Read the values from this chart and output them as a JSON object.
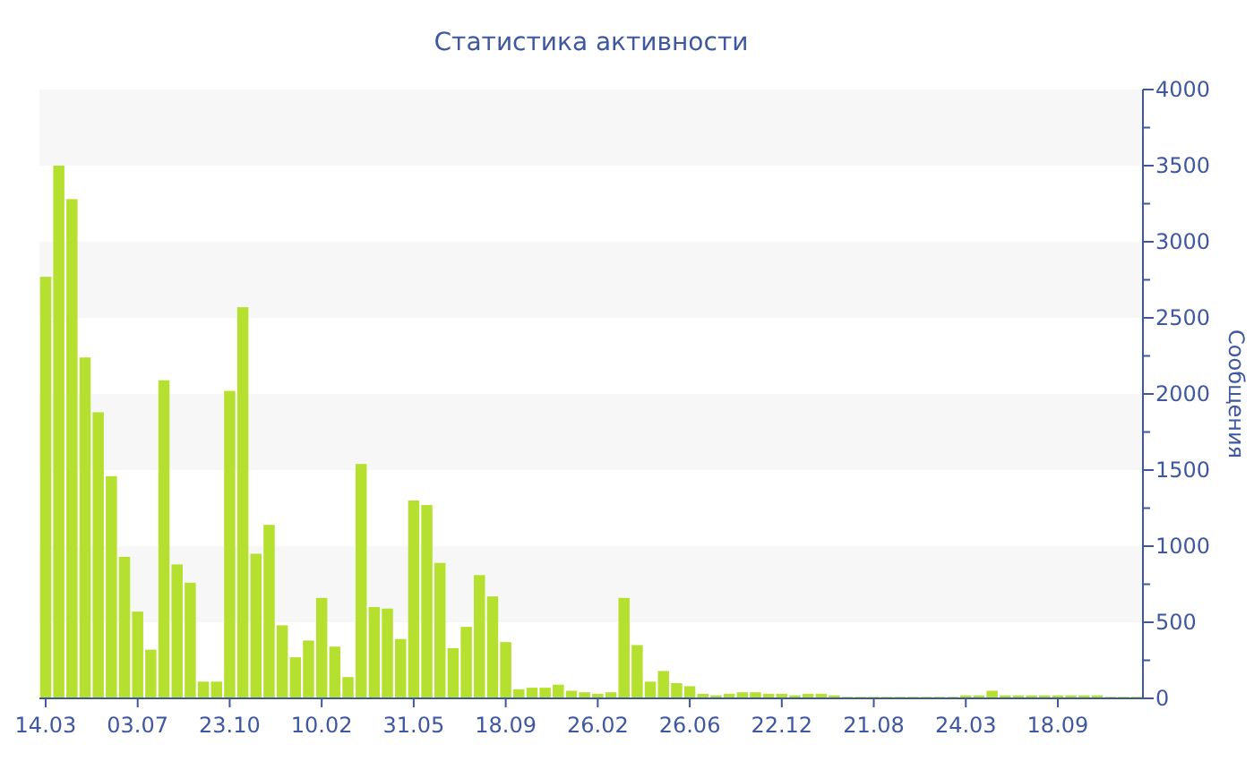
{
  "chart_data": {
    "type": "bar",
    "title": "Статистика активности",
    "ylabel": "Сообщения",
    "categories": [
      "14.03",
      null,
      null,
      null,
      null,
      null,
      null,
      "03.07",
      null,
      null,
      null,
      null,
      null,
      null,
      "23.10",
      null,
      null,
      null,
      null,
      null,
      null,
      "10.02",
      null,
      null,
      null,
      null,
      null,
      null,
      "31.05",
      null,
      null,
      null,
      null,
      null,
      null,
      "18.09",
      null,
      null,
      null,
      null,
      null,
      null,
      "26.02",
      null,
      null,
      null,
      null,
      null,
      null,
      "26.06",
      null,
      null,
      null,
      null,
      null,
      null,
      "22.12",
      null,
      null,
      null,
      null,
      null,
      null,
      "21.08",
      null,
      null,
      null,
      null,
      null,
      null,
      "24.03",
      null,
      null,
      null,
      null,
      null,
      null,
      "18.09",
      null,
      null,
      null,
      null,
      null,
      null
    ],
    "values": [
      2770,
      3500,
      3280,
      2240,
      1880,
      1460,
      930,
      570,
      320,
      2090,
      880,
      760,
      110,
      110,
      2020,
      2570,
      950,
      1140,
      480,
      270,
      380,
      660,
      340,
      140,
      1540,
      600,
      590,
      390,
      1300,
      1270,
      890,
      330,
      470,
      810,
      670,
      370,
      60,
      70,
      70,
      90,
      50,
      40,
      30,
      40,
      660,
      350,
      110,
      180,
      100,
      80,
      30,
      20,
      30,
      40,
      40,
      30,
      30,
      20,
      30,
      30,
      20,
      10,
      10,
      10,
      10,
      10,
      10,
      10,
      10,
      10,
      20,
      20,
      50,
      20,
      20,
      20,
      20,
      20,
      20,
      20,
      20,
      10,
      10,
      10
    ],
    "color": "#b5e02f",
    "ylim": [
      0,
      4000
    ],
    "yticks": [
      0,
      {
        "value": 250,
        "label": null
      },
      500,
      {
        "value": 750,
        "label": null
      },
      1000,
      {
        "value": 1250,
        "label": null
      },
      1500,
      {
        "value": 1750,
        "label": null
      },
      2000,
      {
        "value": 2250,
        "label": null
      },
      2500,
      {
        "value": 2750,
        "label": null
      },
      3000,
      {
        "value": 3250,
        "label": null
      },
      3500,
      {
        "value": 3750,
        "label": null
      },
      4000
    ],
    "bands": [
      {
        "axis": "y",
        "from": 500,
        "to": 1000,
        "color": "#f7f7f7"
      },
      {
        "axis": "y",
        "from": 1500,
        "to": 2000,
        "color": "#f7f7f7"
      },
      {
        "axis": "y",
        "from": 2500,
        "to": 3000,
        "color": "#f7f7f7"
      },
      {
        "axis": "y",
        "from": 3500,
        "to": 4000,
        "color": "#f7f7f7"
      }
    ]
  }
}
